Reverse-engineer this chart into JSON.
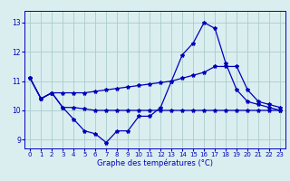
{
  "xlabel": "Graphe des températures (°C)",
  "hours": [
    0,
    1,
    2,
    3,
    4,
    5,
    6,
    7,
    8,
    9,
    10,
    11,
    12,
    13,
    14,
    15,
    16,
    17,
    18,
    19,
    20,
    21,
    22,
    23
  ],
  "line1": [
    11.1,
    10.4,
    10.6,
    10.1,
    9.7,
    9.3,
    9.2,
    8.9,
    9.3,
    9.3,
    9.8,
    9.8,
    10.1,
    11.0,
    11.9,
    12.3,
    13.0,
    12.8,
    11.6,
    10.7,
    10.3,
    10.2,
    10.1,
    10.0
  ],
  "line2": [
    11.1,
    10.4,
    10.6,
    10.6,
    10.6,
    10.6,
    10.65,
    10.7,
    10.75,
    10.8,
    10.85,
    10.9,
    10.95,
    11.0,
    11.1,
    11.2,
    11.3,
    11.5,
    11.5,
    11.5,
    10.7,
    10.3,
    10.2,
    10.1
  ],
  "line3": [
    11.1,
    10.4,
    10.6,
    10.1,
    10.1,
    10.05,
    10.0,
    10.0,
    10.0,
    10.0,
    10.0,
    10.0,
    10.0,
    10.0,
    10.0,
    10.0,
    10.0,
    10.0,
    10.0,
    10.0,
    10.0,
    10.0,
    10.0,
    10.0
  ],
  "line_color": "#0000bb",
  "bg_color": "#daeef0",
  "grid_color": "#aacccc",
  "ylim": [
    8.7,
    13.4
  ],
  "yticks": [
    9,
    10,
    11,
    12,
    13
  ],
  "xticks": [
    0,
    1,
    2,
    3,
    4,
    5,
    6,
    7,
    8,
    9,
    10,
    11,
    12,
    13,
    14,
    15,
    16,
    17,
    18,
    19,
    20,
    21,
    22,
    23
  ]
}
